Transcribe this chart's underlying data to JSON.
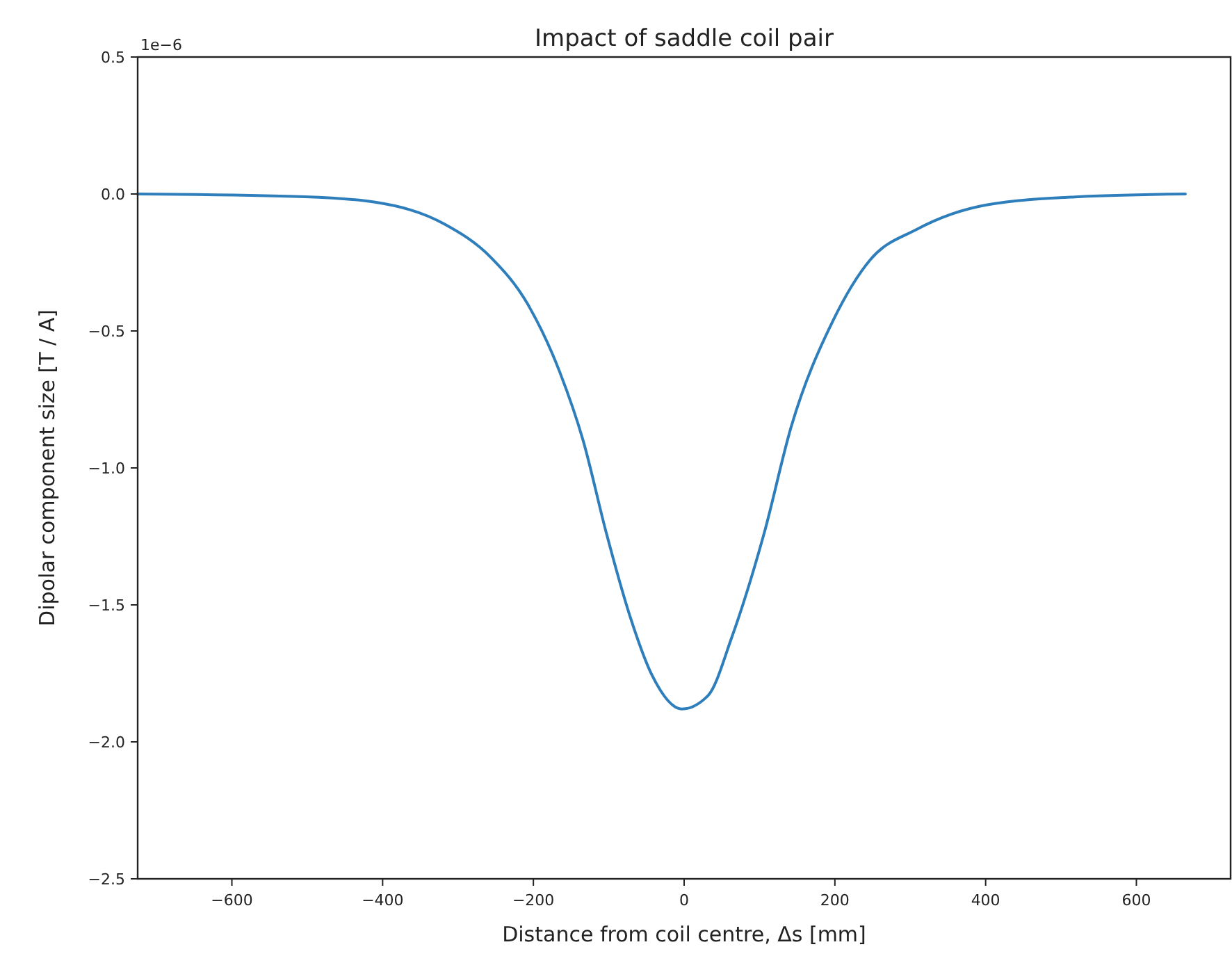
{
  "chart_data": {
    "type": "line",
    "title": "Impact of saddle coil pair",
    "xlabel": "Distance from coil centre, Δs [mm]",
    "ylabel": "Dipolar component size [T / A]",
    "annotations": [
      "1e−6"
    ],
    "xlim": [
      -725,
      725
    ],
    "ylim": [
      -2.5,
      0.5
    ],
    "xticks": [
      {
        "value": -600,
        "label": "−600"
      },
      {
        "value": -400,
        "label": "−400"
      },
      {
        "value": -200,
        "label": "−200"
      },
      0,
      200,
      400,
      600
    ],
    "yticks": [
      {
        "value": -2.5,
        "label": "−2.5"
      },
      {
        "value": -2,
        "label": "−2.0"
      },
      {
        "value": -1.5,
        "label": "−1.5"
      },
      {
        "value": -1,
        "label": "−1.0"
      },
      {
        "value": -0.5,
        "label": "−0.5"
      },
      {
        "value": 0,
        "label": "0.0"
      },
      {
        "value": 0.5,
        "label": "0.5"
      }
    ],
    "grid": false,
    "marker": "none",
    "line_style": "solid",
    "series": [
      {
        "color": "#2f7ebc",
        "x": [
          -725,
          -503,
          -410,
          -318,
          -257,
          -208,
          -165,
          -134,
          -103,
          -72,
          -42,
          -3,
          32,
          63,
          106,
          142,
          198,
          247,
          308,
          401,
          523,
          665
        ],
        "values": [
          0,
          -0.01,
          -0.03,
          -0.11,
          -0.23,
          -0.4,
          -0.65,
          -0.9,
          -1.24,
          -1.54,
          -1.76,
          -1.88,
          -1.83,
          -1.62,
          -1.24,
          -0.85,
          -0.46,
          -0.24,
          -0.13,
          -0.04,
          -0.01,
          0
        ]
      }
    ]
  }
}
